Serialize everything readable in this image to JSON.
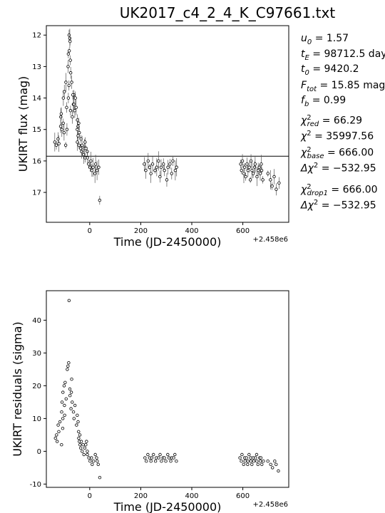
{
  "figure": {
    "title": "UK2017_c4_2_4_K_C97661.txt"
  },
  "params": [
    {
      "name": "u0",
      "label": "u",
      "sub": "0",
      "value": "= 1.57"
    },
    {
      "name": "tE",
      "label": "t",
      "sub": "E",
      "value": "= 98712.5 days"
    },
    {
      "name": "t0",
      "label": "t",
      "sub": "0",
      "value": "= 9420.2"
    },
    {
      "name": "Ftot",
      "label": "F",
      "sub": "tot",
      "value": "= 15.85 mag"
    },
    {
      "name": "fb",
      "label": "f",
      "sub": "b",
      "value": "= 0.99"
    },
    {
      "name": "chi2-red",
      "label": "χ",
      "sup": "2",
      "sub": "red",
      "value": "= 66.29"
    },
    {
      "name": "chi2",
      "label": "χ",
      "sup": "2",
      "sub": "",
      "value": "= 35997.56"
    },
    {
      "name": "chi2-base",
      "label": "χ",
      "sup": "2",
      "sub": "base",
      "value": "= 666.00"
    },
    {
      "name": "dchi2",
      "label": "Δχ",
      "sup": "2",
      "sub": "",
      "value": "= −532.95"
    },
    {
      "name": "chi2-drop1",
      "label": "χ",
      "sup": "2",
      "sub": "drop1",
      "value": "= 666.00"
    },
    {
      "name": "dchi2-drop1",
      "label": "Δχ",
      "sup": "2",
      "sub": "",
      "value": "= −532.95"
    }
  ],
  "chart_data": [
    {
      "type": "scatter",
      "title": "UK2017_c4_2_4_K_C97661.txt",
      "xlabel": "Time (JD-2450000)",
      "ylabel": "UKIRT flux (mag)",
      "x_offset_label": "+2.458e6",
      "xlim": [
        -170,
        780
      ],
      "ylim": [
        17.95,
        11.7
      ],
      "y_inverted": true,
      "xticks": [
        0,
        200,
        400,
        600
      ],
      "yticks": [
        12,
        13,
        14,
        15,
        16,
        17
      ],
      "hline": 15.85,
      "series": [
        {
          "marker": "open-circle",
          "error_bars": true,
          "clusters": [
            {
              "x_range": [
                -135,
                -90
              ],
              "values": [
                15.4,
                15.5,
                15.3,
                15.45,
                14.9,
                15.0,
                14.8,
                15.1,
                15.5,
                15.0
              ]
            },
            {
              "x_range": [
                -115,
                -60
              ],
              "values": [
                14.6,
                14.5,
                14.0,
                13.8,
                13.5,
                14.3,
                14.0,
                13.6,
                14.4,
                14.6,
                14.2,
                13.9
              ]
            },
            {
              "x_range": [
                -85,
                -74
              ],
              "values": [
                13.0,
                12.6,
                12.5,
                12.0,
                12.1,
                12.2,
                12.8,
                13.2
              ]
            },
            {
              "x_range": [
                -70,
                -40
              ],
              "values": [
                13.5,
                13.9,
                14.2,
                14.4,
                14.0,
                14.3,
                14.7,
                14.9,
                14.8,
                15.1
              ]
            },
            {
              "x_range": [
                -50,
                -10
              ],
              "values": [
                15.0,
                15.4,
                15.2,
                15.5,
                15.6,
                15.3,
                15.7,
                15.5,
                15.8,
                15.6,
                15.4,
                15.9,
                15.6,
                15.7
              ]
            },
            {
              "x_range": [
                -10,
                40
              ],
              "values": [
                15.9,
                16.1,
                16.2,
                16.0,
                16.3,
                16.2,
                16.4,
                16.1,
                16.3,
                16.2,
                17.25
              ]
            },
            {
              "x_range": [
                215,
                340
              ],
              "values": [
                16.1,
                16.3,
                16.0,
                16.2,
                16.4,
                16.1,
                16.3,
                16.2,
                16.0,
                16.5,
                16.2,
                16.1,
                16.3,
                16.6,
                16.2,
                16.1,
                16.4,
                16.0,
                16.3,
                16.2
              ]
            },
            {
              "x_range": [
                590,
                680
              ],
              "values": [
                16.1,
                16.3,
                16.0,
                16.4,
                16.2,
                16.5,
                16.1,
                16.3,
                16.2,
                16.6,
                16.0,
                16.3,
                16.4,
                16.2,
                16.1,
                16.5,
                16.3,
                16.2,
                16.4,
                16.1,
                16.3,
                16.6
              ]
            },
            {
              "x_range": [
                700,
                740
              ],
              "values": [
                16.4,
                16.6,
                16.8,
                16.5,
                16.9,
                16.7
              ]
            }
          ]
        }
      ]
    },
    {
      "type": "scatter",
      "xlabel": "Time (JD-2450000)",
      "ylabel": "UKIRT residuals (sigma)",
      "x_offset_label": "+2.458e6",
      "xlim": [
        -170,
        780
      ],
      "ylim": [
        -11,
        49
      ],
      "xticks": [
        0,
        200,
        400,
        600
      ],
      "yticks": [
        -10,
        0,
        10,
        20,
        30,
        40
      ],
      "series": [
        {
          "marker": "open-circle",
          "error_bars": false,
          "clusters": [
            {
              "x_range": [
                -135,
                -100
              ],
              "values": [
                4,
                5,
                3,
                8,
                6,
                9,
                2,
                7,
                10,
                11
              ]
            },
            {
              "x_range": [
                -110,
                -70
              ],
              "values": [
                12,
                15,
                18,
                20,
                14,
                21,
                16,
                25,
                26,
                27,
                17,
                19,
                13,
                22
              ]
            },
            {
              "x_range": [
                -82,
                -80
              ],
              "values": [
                46
              ]
            },
            {
              "x_range": [
                -70,
                -40
              ],
              "values": [
                18,
                15,
                12,
                10,
                14,
                8,
                11,
                9,
                6,
                5
              ]
            },
            {
              "x_range": [
                -45,
                -10
              ],
              "values": [
                4,
                3,
                2,
                1,
                3,
                0,
                2,
                -1,
                1,
                2,
                3,
                0
              ]
            },
            {
              "x_range": [
                -10,
                40
              ],
              "values": [
                -1,
                -2,
                -3,
                -2,
                -4,
                -3,
                -1,
                -2,
                -3,
                -4,
                -8
              ]
            },
            {
              "x_range": [
                215,
                340
              ],
              "values": [
                -2,
                -3,
                -1,
                -2,
                -3,
                -2,
                -1,
                -3,
                -2,
                -2,
                -1,
                -3,
                -2,
                -2,
                -3,
                -1,
                -2,
                -3,
                -2,
                -2,
                -1,
                -3
              ]
            },
            {
              "x_range": [
                590,
                680
              ],
              "values": [
                -2,
                -3,
                -1,
                -4,
                -2,
                -3,
                -2,
                -4,
                -3,
                -1,
                -2,
                -3,
                -4,
                -2,
                -3,
                -2,
                -1,
                -3,
                -4,
                -2,
                -3,
                -2,
                -4,
                -3
              ]
            },
            {
              "x_range": [
                700,
                740
              ],
              "values": [
                -3,
                -4,
                -5,
                -3,
                -4,
                -6
              ]
            }
          ]
        }
      ]
    }
  ]
}
